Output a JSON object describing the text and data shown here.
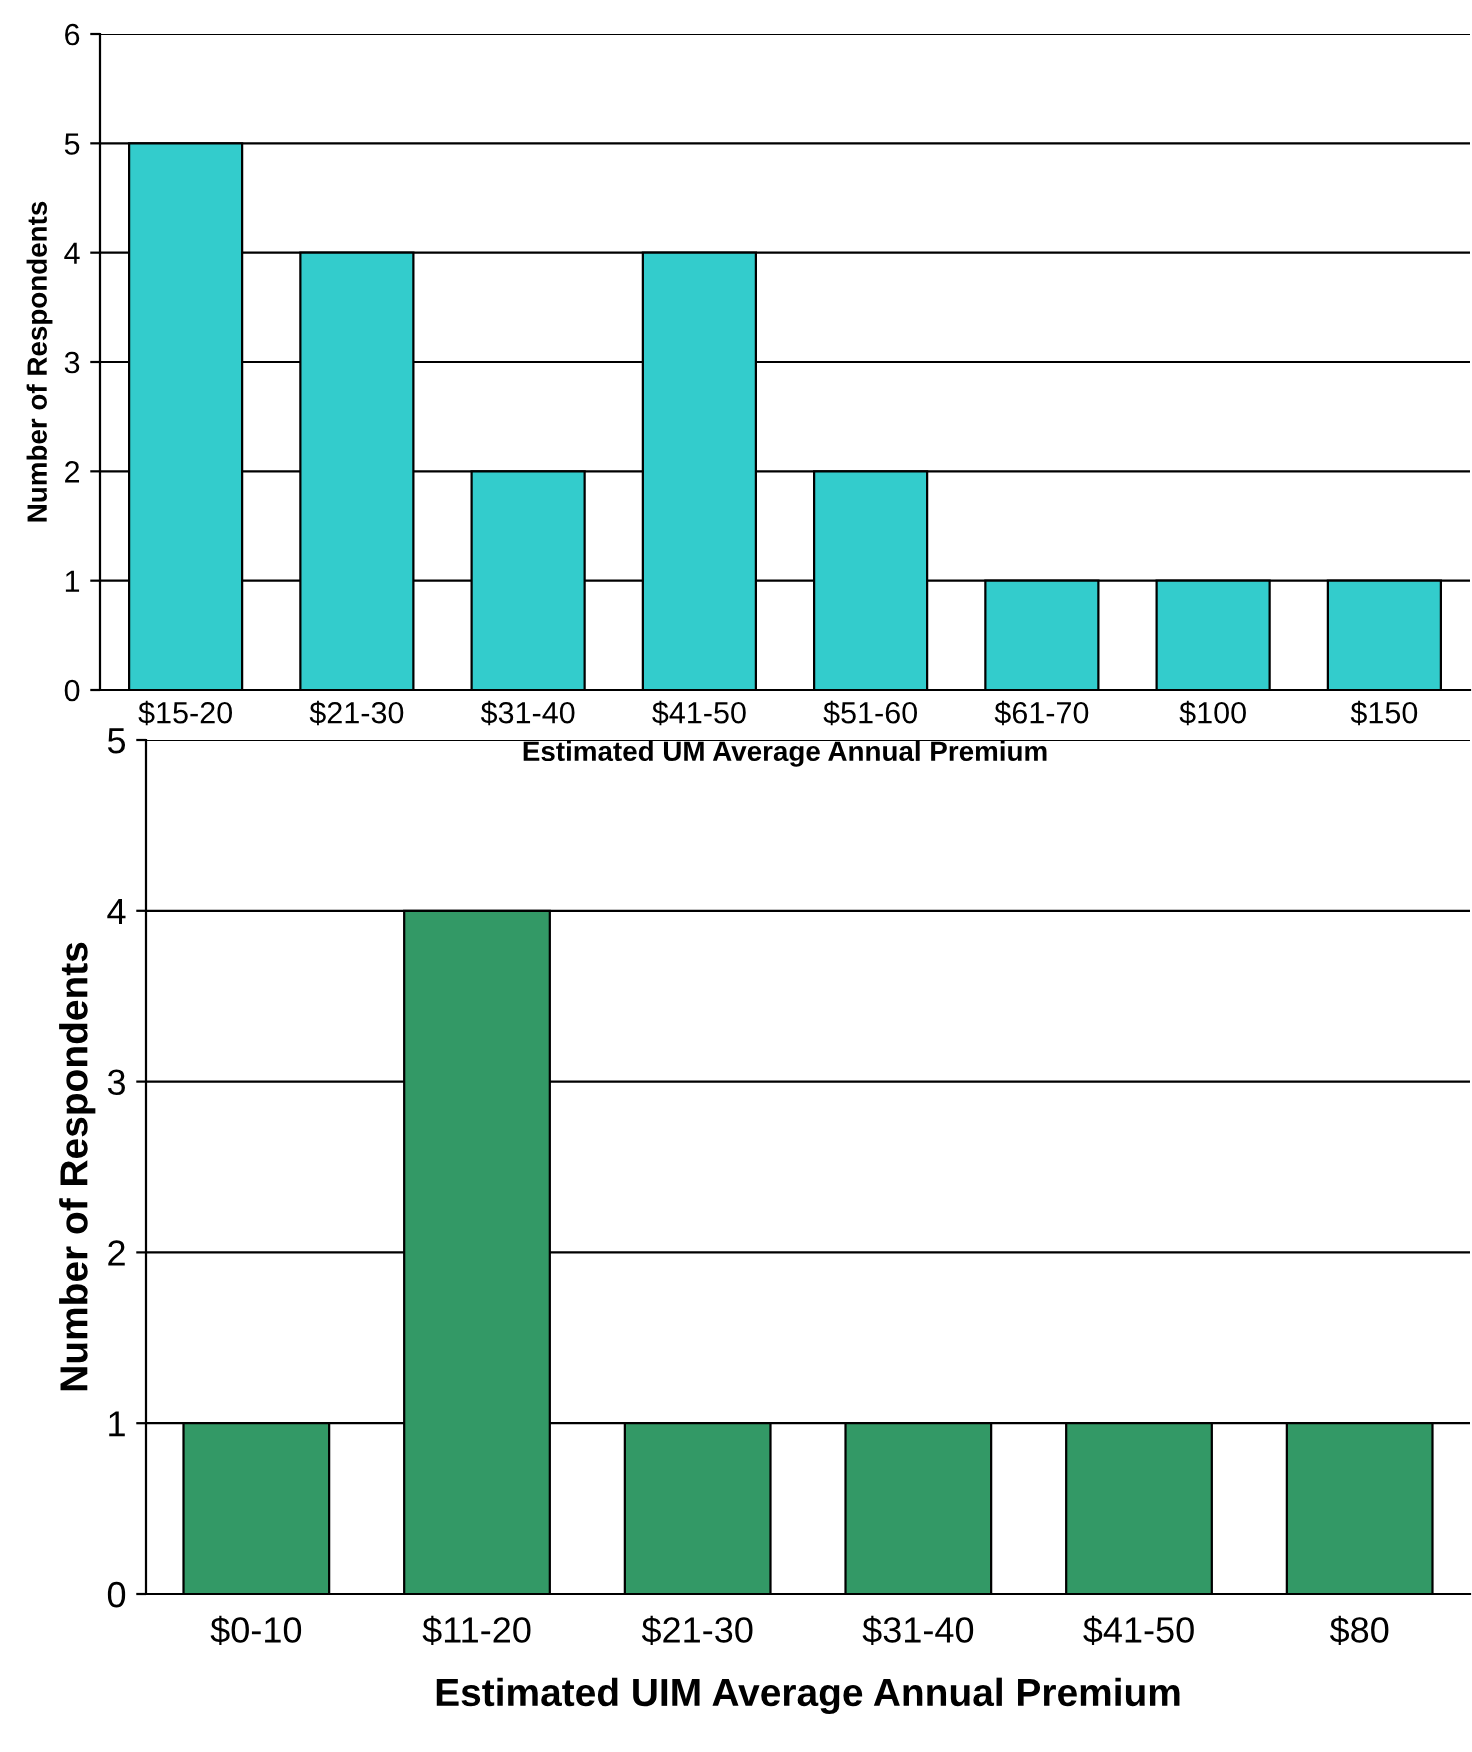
{
  "chart_data": [
    {
      "type": "bar",
      "xlabel": "Estimated UM Average Annual Premium",
      "ylabel": "Number of Respondents",
      "categories": [
        "$15-20",
        "$21-30",
        "$31-40",
        "$41-50",
        "$51-60",
        "$61-70",
        "$100",
        "$150"
      ],
      "values": [
        5,
        4,
        2,
        4,
        2,
        1,
        1,
        1
      ],
      "color": "#33cccc",
      "ylim": [
        0,
        6
      ],
      "yticks": [
        0,
        1,
        2,
        3,
        4,
        5,
        6
      ],
      "grid": "y",
      "legend": false
    },
    {
      "type": "bar",
      "xlabel": "Estimated UIM Average Annual Premium",
      "ylabel": "Number of Respondents",
      "categories": [
        "$0-10",
        "$11-20",
        "$21-30",
        "$31-40",
        "$41-50",
        "$80"
      ],
      "values": [
        1,
        4,
        1,
        1,
        1,
        1
      ],
      "color": "#339966",
      "ylim": [
        0,
        5
      ],
      "yticks": [
        0,
        1,
        2,
        3,
        4,
        5
      ],
      "grid": "y",
      "legend": false
    }
  ]
}
